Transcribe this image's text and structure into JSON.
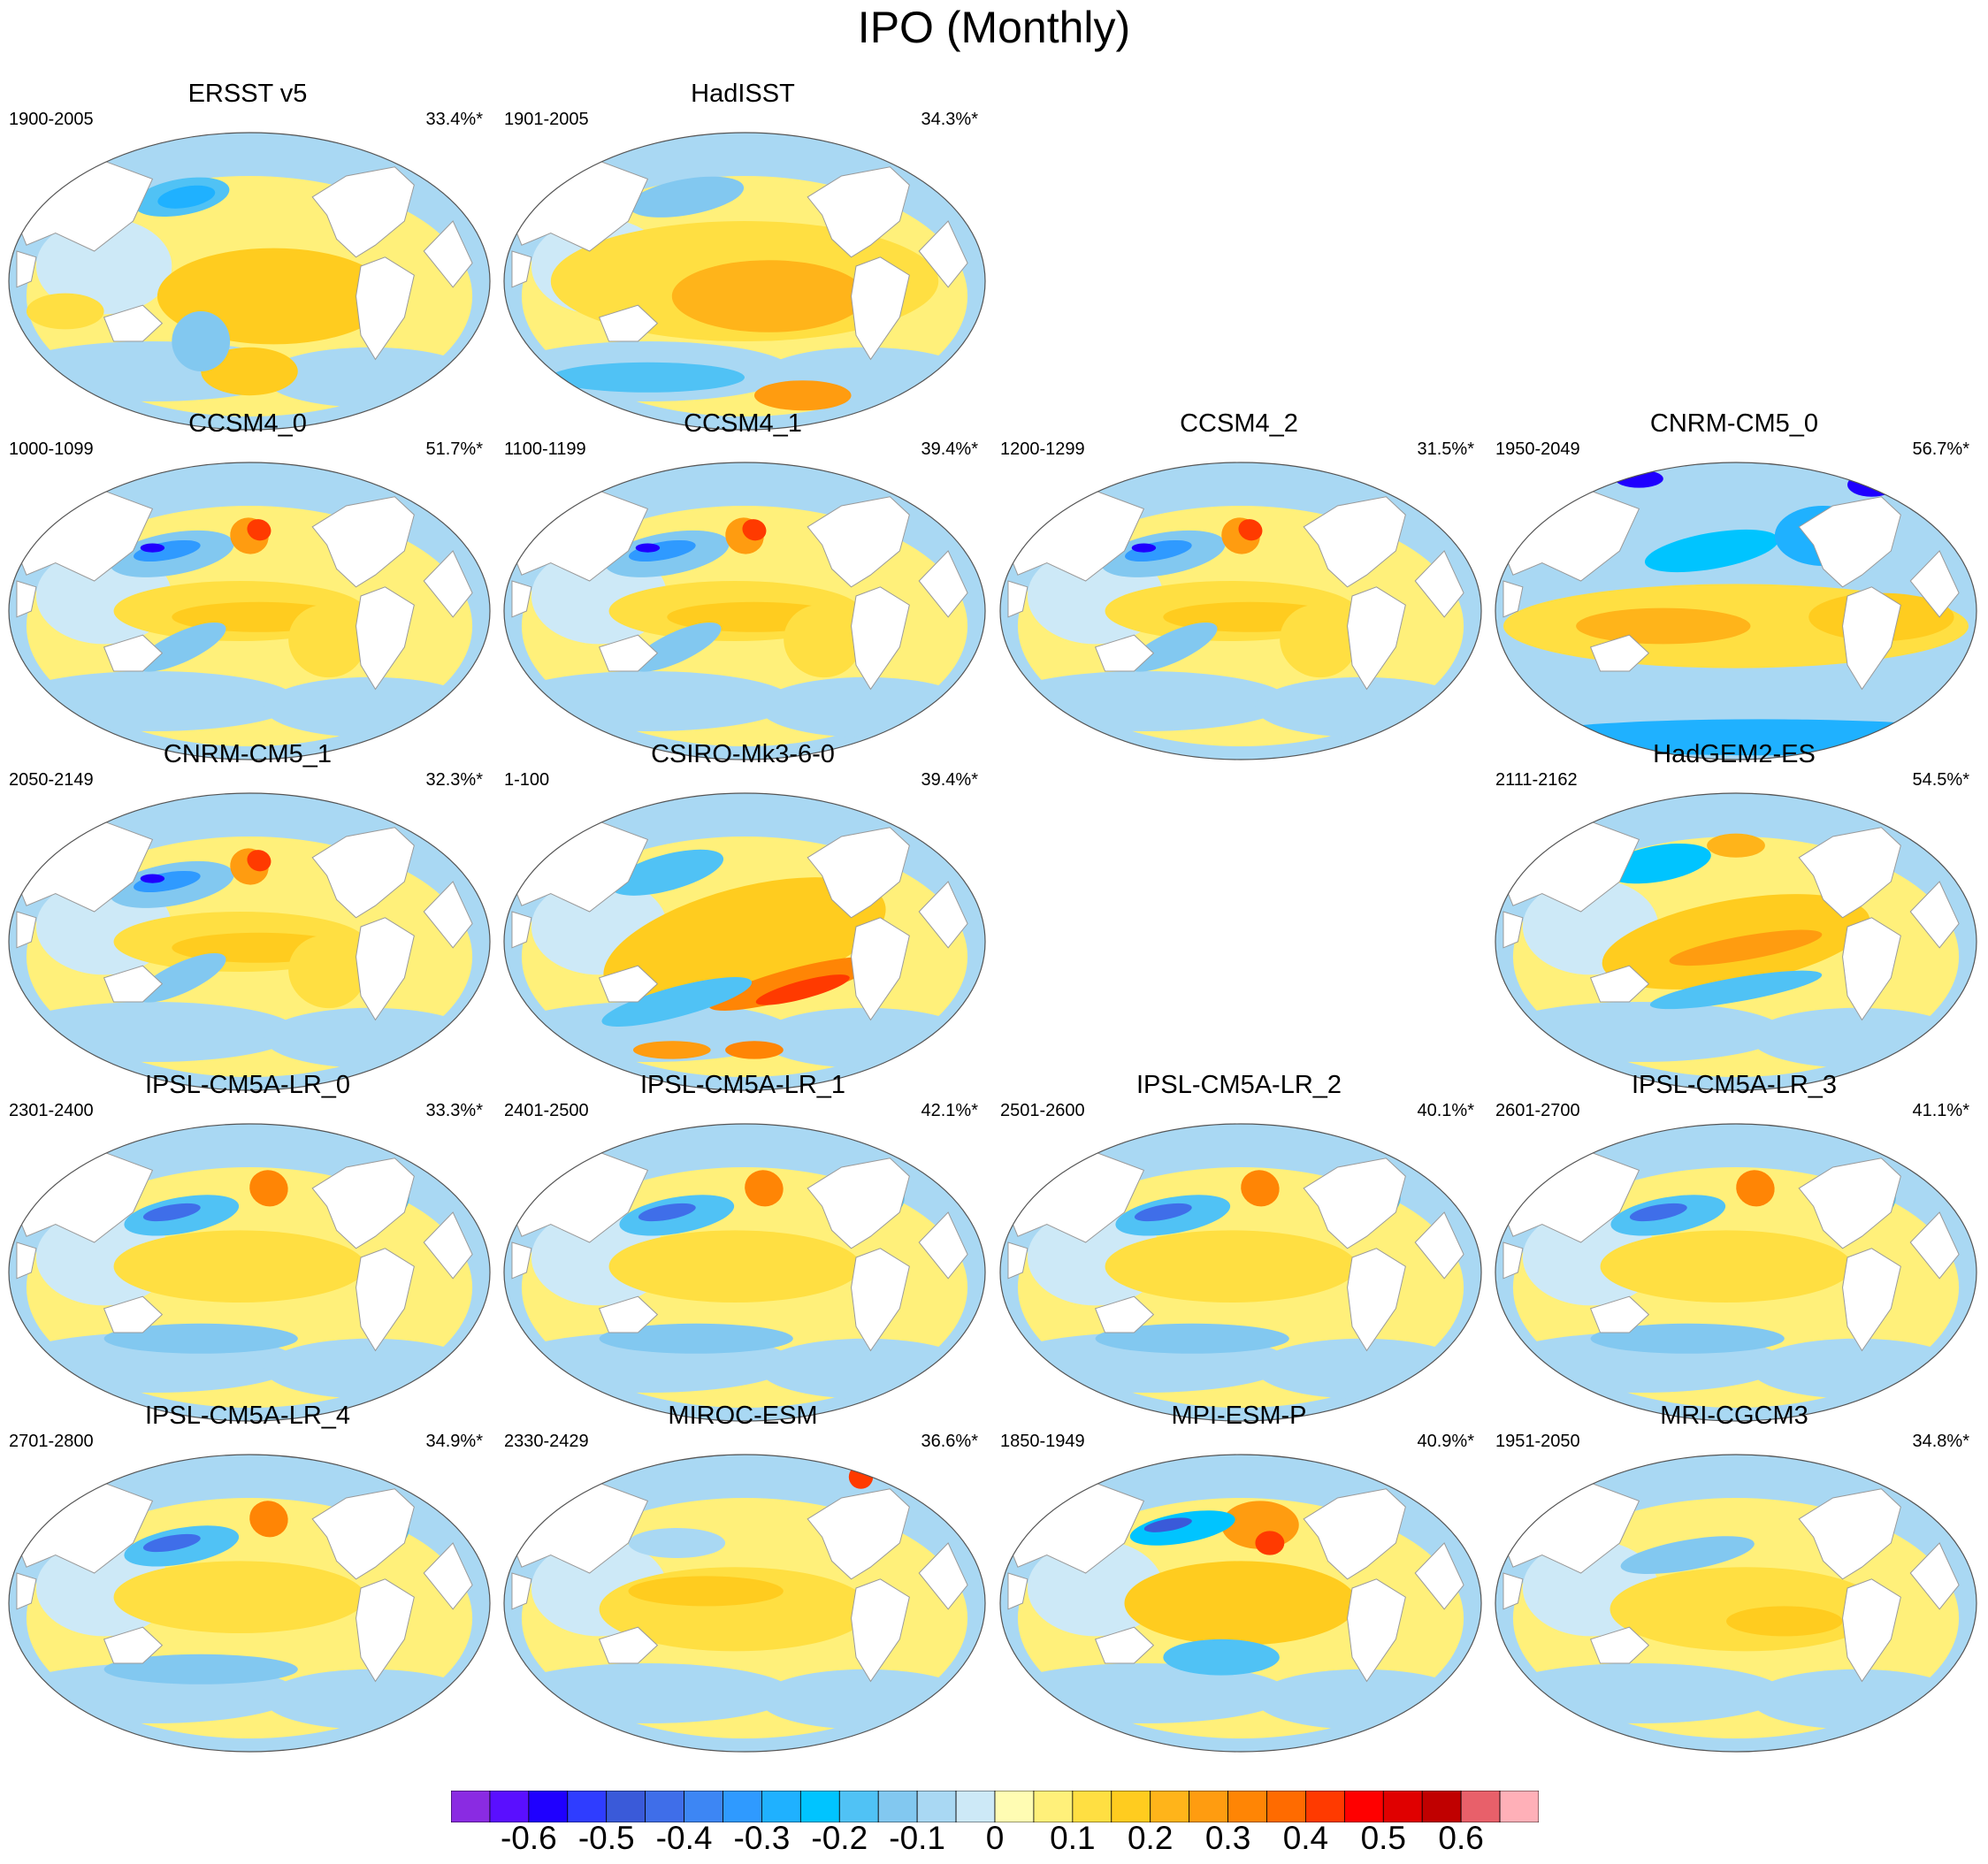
{
  "title": "IPO (Monthly)",
  "chart_data": {
    "type": "heatmap",
    "title": "IPO (Monthly)",
    "description_type": "filled-contour global SST regression maps, one panel per dataset",
    "colorbar": {
      "levels": [
        -0.7,
        -0.65,
        -0.6,
        -0.55,
        -0.5,
        -0.45,
        -0.4,
        -0.35,
        -0.3,
        -0.25,
        -0.2,
        -0.15,
        -0.1,
        -0.05,
        0,
        0.05,
        0.1,
        0.15,
        0.2,
        0.25,
        0.3,
        0.35,
        0.4,
        0.45,
        0.5,
        0.55,
        0.6,
        0.65,
        0.7
      ],
      "colors": [
        "#8a2be2",
        "#5a0fff",
        "#1f00ff",
        "#2f3dff",
        "#3a5ad9",
        "#3f6ee9",
        "#3d86f4",
        "#2f9aff",
        "#1fb1ff",
        "#00c4ff",
        "#50c2f5",
        "#82c8f0",
        "#a9d8f3",
        "#cde9f7",
        "#fffcb3",
        "#fff07a",
        "#ffdf42",
        "#ffcc1f",
        "#ffb41a",
        "#ff9c10",
        "#ff8505",
        "#ff6b00",
        "#ff3a00",
        "#ff0000",
        "#e00000",
        "#c00000",
        "#e8606a",
        "#ffb0b8"
      ],
      "tick_labels": [
        "-0.6",
        "-0.5",
        "-0.4",
        "-0.3",
        "-0.2",
        "-0.1",
        "0",
        "0.1",
        "0.2",
        "0.3",
        "0.4",
        "0.5",
        "0.6"
      ],
      "tick_values": [
        -0.6,
        -0.5,
        -0.4,
        -0.3,
        -0.2,
        -0.1,
        0,
        0.1,
        0.2,
        0.3,
        0.4,
        0.5,
        0.6
      ]
    },
    "panels": [
      {
        "name": "ERSST v5",
        "period": "1900-2005",
        "variance": "33.4%*",
        "row": 0,
        "col": 0,
        "style": "obs1"
      },
      {
        "name": "HadISST",
        "period": "1901-2005",
        "variance": "34.3%*",
        "row": 0,
        "col": 1,
        "style": "obs2"
      },
      {
        "name": "CCSM4_0",
        "period": "1000-1099",
        "variance": "51.7%*",
        "row": 1,
        "col": 0,
        "style": "ccsm"
      },
      {
        "name": "CCSM4_1",
        "period": "1100-1199",
        "variance": "39.4%*",
        "row": 1,
        "col": 1,
        "style": "ccsm"
      },
      {
        "name": "CCSM4_2",
        "period": "1200-1299",
        "variance": "31.5%*",
        "row": 1,
        "col": 2,
        "style": "ccsm"
      },
      {
        "name": "CNRM-CM5_0",
        "period": "1950-2049",
        "variance": "56.7%*",
        "row": 1,
        "col": 3,
        "style": "cnrm0"
      },
      {
        "name": "CNRM-CM5_1",
        "period": "2050-2149",
        "variance": "32.3%*",
        "row": 2,
        "col": 0,
        "style": "ccsm"
      },
      {
        "name": "CSIRO-Mk3-6-0",
        "period": "1-100",
        "variance": "39.4%*",
        "row": 2,
        "col": 1,
        "style": "csiro"
      },
      {
        "name": "HadGEM2-ES",
        "period": "2111-2162",
        "variance": "54.5%*",
        "row": 2,
        "col": 3,
        "style": "hadgem"
      },
      {
        "name": "IPSL-CM5A-LR_0",
        "period": "2301-2400",
        "variance": "33.3%*",
        "row": 3,
        "col": 0,
        "style": "ipsl"
      },
      {
        "name": "IPSL-CM5A-LR_1",
        "period": "2401-2500",
        "variance": "42.1%*",
        "row": 3,
        "col": 1,
        "style": "ipsl"
      },
      {
        "name": "IPSL-CM5A-LR_2",
        "period": "2501-2600",
        "variance": "40.1%*",
        "row": 3,
        "col": 2,
        "style": "ipsl"
      },
      {
        "name": "IPSL-CM5A-LR_3",
        "period": "2601-2700",
        "variance": "41.1%*",
        "row": 3,
        "col": 3,
        "style": "ipsl"
      },
      {
        "name": "IPSL-CM5A-LR_4",
        "period": "2701-2800",
        "variance": "34.9%*",
        "row": 4,
        "col": 0,
        "style": "ipsl"
      },
      {
        "name": "MIROC-ESM",
        "period": "2330-2429",
        "variance": "36.6%*",
        "row": 4,
        "col": 1,
        "style": "miroc"
      },
      {
        "name": "MPI-ESM-P",
        "period": "1850-1949",
        "variance": "40.9%*",
        "row": 4,
        "col": 2,
        "style": "mpi"
      },
      {
        "name": "MRI-CGCM3",
        "period": "1951-2050",
        "variance": "34.8%*",
        "row": 4,
        "col": 3,
        "style": "mri"
      }
    ]
  }
}
